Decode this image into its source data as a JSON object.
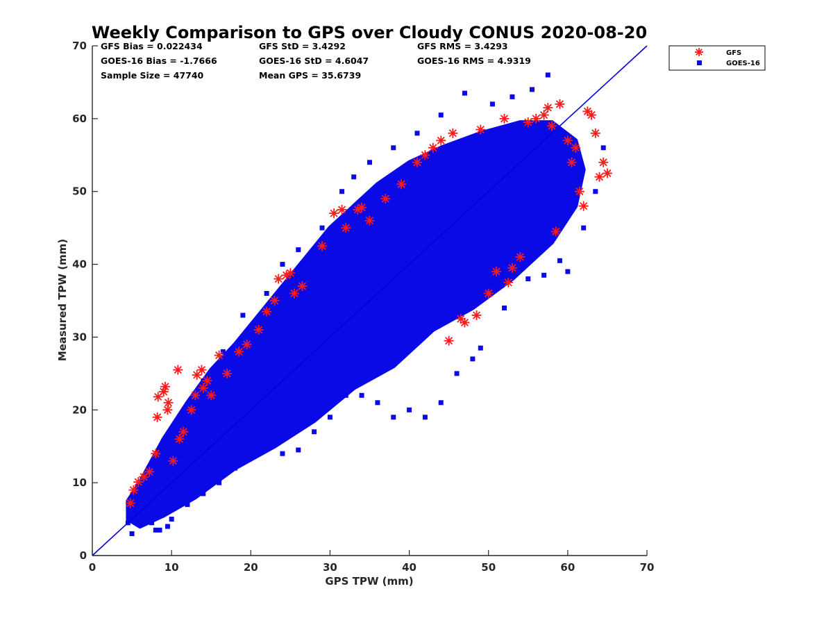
{
  "chart_data": {
    "type": "scatter",
    "title": "Weekly Comparison to GPS over Cloudy CONUS 2020-08-20",
    "xlabel": "GPS TPW (mm)",
    "ylabel": "Measured TPW (mm)",
    "xlim": [
      0,
      70
    ],
    "ylim": [
      0,
      70
    ],
    "xticks": [
      "0",
      "10",
      "20",
      "30",
      "40",
      "50",
      "60",
      "70"
    ],
    "yticks": [
      "0",
      "10",
      "20",
      "30",
      "40",
      "50",
      "60",
      "70"
    ],
    "grid": false,
    "legend_position": "outside-top-right",
    "reference_line": {
      "from": [
        0,
        0
      ],
      "to": [
        70,
        70
      ],
      "color": "#0000dd"
    },
    "stats": [
      [
        "GFS Bias = 0.022434",
        "GFS StD = 3.4292",
        "GFS RMS = 3.4293"
      ],
      [
        "GOES-16 Bias = -1.7666",
        "GOES-16 StD = 4.6047",
        "GOES-16 RMS = 4.9319"
      ],
      [
        "Sample Size = 47740",
        "Mean GPS = 35.6739"
      ]
    ],
    "series": [
      {
        "name": "GFS",
        "marker": "asterisk",
        "color": "#ff1a1a",
        "points": [
          [
            4.8,
            7.2
          ],
          [
            5.2,
            9.0
          ],
          [
            5.8,
            10.1
          ],
          [
            6.5,
            10.8
          ],
          [
            7.2,
            11.5
          ],
          [
            8.0,
            14.0
          ],
          [
            8.2,
            19.0
          ],
          [
            8.3,
            21.8
          ],
          [
            9.0,
            22.5
          ],
          [
            9.2,
            23.2
          ],
          [
            9.5,
            20.0
          ],
          [
            9.6,
            21.0
          ],
          [
            10.2,
            13.0
          ],
          [
            10.8,
            25.5
          ],
          [
            11.0,
            16.0
          ],
          [
            11.5,
            17.0
          ],
          [
            12.5,
            20.0
          ],
          [
            13.0,
            22.0
          ],
          [
            13.2,
            24.8
          ],
          [
            13.8,
            25.5
          ],
          [
            14.0,
            23.0
          ],
          [
            14.5,
            24.0
          ],
          [
            15.0,
            22.0
          ],
          [
            16.0,
            27.5
          ],
          [
            17.0,
            25.0
          ],
          [
            18.5,
            28.0
          ],
          [
            19.5,
            29.0
          ],
          [
            21.0,
            31.0
          ],
          [
            22.0,
            33.5
          ],
          [
            23.0,
            35.0
          ],
          [
            23.5,
            38.0
          ],
          [
            24.5,
            38.5
          ],
          [
            25.0,
            38.8
          ],
          [
            25.5,
            36.0
          ],
          [
            26.5,
            37.0
          ],
          [
            29.0,
            42.5
          ],
          [
            30.5,
            47.0
          ],
          [
            31.5,
            47.5
          ],
          [
            32.0,
            45.0
          ],
          [
            33.5,
            47.5
          ],
          [
            34.0,
            47.8
          ],
          [
            35.0,
            46.0
          ],
          [
            37.0,
            49.0
          ],
          [
            39.0,
            51.0
          ],
          [
            41.0,
            54.0
          ],
          [
            42.0,
            55.0
          ],
          [
            43.0,
            56.0
          ],
          [
            44.0,
            57.0
          ],
          [
            45.0,
            29.5
          ],
          [
            45.5,
            58.0
          ],
          [
            46.5,
            32.5
          ],
          [
            47.0,
            32.0
          ],
          [
            48.5,
            33.0
          ],
          [
            49.0,
            58.5
          ],
          [
            50.0,
            36.0
          ],
          [
            51.0,
            39.0
          ],
          [
            52.0,
            60.0
          ],
          [
            52.5,
            37.5
          ],
          [
            53.0,
            39.5
          ],
          [
            54.0,
            41.0
          ],
          [
            55.0,
            59.5
          ],
          [
            56.0,
            60.0
          ],
          [
            57.0,
            60.5
          ],
          [
            57.5,
            61.5
          ],
          [
            58.0,
            59.0
          ],
          [
            58.5,
            44.5
          ],
          [
            59.0,
            62.0
          ],
          [
            60.0,
            57.0
          ],
          [
            61.0,
            56.0
          ],
          [
            62.0,
            48.0
          ],
          [
            62.5,
            61.0
          ],
          [
            63.0,
            60.5
          ],
          [
            63.5,
            58.0
          ],
          [
            64.0,
            52.0
          ],
          [
            64.5,
            54.0
          ],
          [
            65.0,
            52.5
          ],
          [
            61.5,
            50.0
          ],
          [
            60.5,
            54.0
          ]
        ]
      },
      {
        "name": "GOES-16",
        "marker": "square",
        "color": "#0a0ae6",
        "points": [
          [
            4.5,
            4.5
          ],
          [
            5.0,
            3.0
          ],
          [
            5.5,
            5.0
          ],
          [
            7.5,
            4.5
          ],
          [
            8.0,
            3.5
          ],
          [
            8.5,
            3.5
          ],
          [
            9.5,
            4.0
          ],
          [
            10.0,
            5.0
          ],
          [
            12.0,
            7.0
          ],
          [
            14.0,
            8.5
          ],
          [
            16.0,
            10.0
          ],
          [
            18.0,
            12.0
          ],
          [
            20.0,
            13.5
          ],
          [
            22.0,
            15.0
          ],
          [
            24.0,
            14.0
          ],
          [
            26.0,
            14.5
          ],
          [
            28.0,
            17.0
          ],
          [
            30.0,
            19.0
          ],
          [
            32.0,
            22.0
          ],
          [
            34.0,
            22.0
          ],
          [
            36.0,
            21.0
          ],
          [
            38.0,
            19.0
          ],
          [
            40.0,
            20.0
          ],
          [
            42.0,
            19.0
          ],
          [
            44.0,
            21.0
          ],
          [
            46.0,
            25.0
          ],
          [
            48.0,
            27.0
          ],
          [
            49.0,
            28.5
          ],
          [
            52.0,
            34.0
          ],
          [
            55.0,
            38.0
          ],
          [
            57.0,
            38.5
          ],
          [
            59.0,
            40.5
          ],
          [
            60.0,
            39.0
          ],
          [
            62.0,
            45.0
          ],
          [
            63.5,
            50.0
          ],
          [
            64.5,
            56.0
          ],
          [
            57.5,
            66.0
          ],
          [
            55.5,
            64.0
          ],
          [
            53.0,
            63.0
          ],
          [
            50.5,
            62.0
          ],
          [
            47.0,
            63.5
          ],
          [
            44.0,
            60.5
          ],
          [
            41.0,
            58.0
          ],
          [
            38.0,
            56.0
          ],
          [
            35.0,
            54.0
          ],
          [
            33.0,
            52.0
          ],
          [
            31.5,
            50.0
          ],
          [
            29.0,
            45.0
          ],
          [
            26.0,
            42.0
          ],
          [
            24.0,
            40.0
          ],
          [
            22.0,
            36.0
          ],
          [
            19.0,
            33.0
          ],
          [
            16.5,
            28.0
          ],
          [
            14.0,
            24.0
          ],
          [
            12.0,
            20.0
          ],
          [
            10.0,
            17.0
          ],
          [
            8.5,
            14.0
          ],
          [
            7.0,
            11.0
          ],
          [
            5.5,
            8.0
          ]
        ]
      }
    ],
    "density_regions": [
      {
        "color": "#0a0ae6",
        "outline": [
          [
            4.5,
            5.0
          ],
          [
            6,
            4.0
          ],
          [
            9,
            5.5
          ],
          [
            13,
            8.0
          ],
          [
            18,
            12.0
          ],
          [
            23,
            15.0
          ],
          [
            28,
            18.5
          ],
          [
            33,
            23.0
          ],
          [
            38,
            26.0
          ],
          [
            43,
            31.0
          ],
          [
            48,
            34.0
          ],
          [
            53,
            38.0
          ],
          [
            58,
            43.0
          ],
          [
            61,
            48.0
          ],
          [
            62,
            53.0
          ],
          [
            61,
            57.0
          ],
          [
            58,
            59.5
          ],
          [
            54,
            59.5
          ],
          [
            49,
            58.0
          ],
          [
            44,
            56.0
          ],
          [
            40,
            54.0
          ],
          [
            36,
            51.0
          ],
          [
            33,
            48.0
          ],
          [
            30,
            45.0
          ],
          [
            27,
            41.0
          ],
          [
            24,
            37.0
          ],
          [
            21,
            33.0
          ],
          [
            18,
            29.0
          ],
          [
            15,
            25.5
          ],
          [
            12,
            21.0
          ],
          [
            9,
            16.0
          ],
          [
            6,
            10.0
          ],
          [
            4.5,
            7.5
          ]
        ]
      }
    ]
  }
}
